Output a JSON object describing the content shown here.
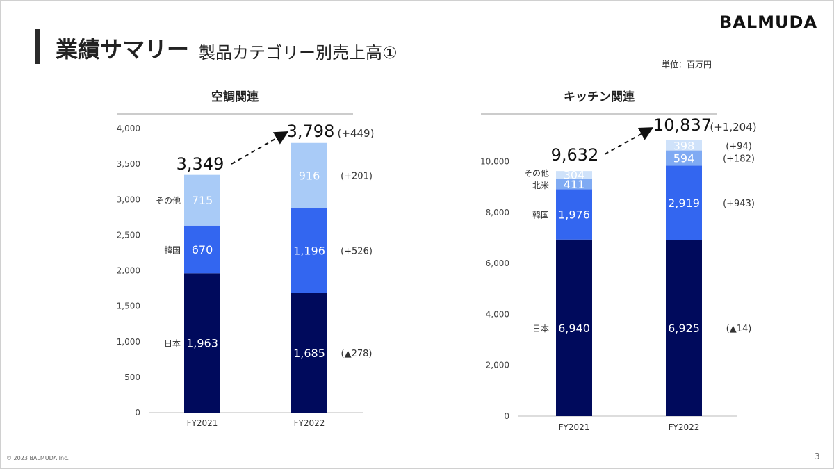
{
  "header": {
    "title": "業績サマリー",
    "subtitle": "製品カテゴリー別売上高①",
    "brand": "BALMUDA",
    "unit": "単位：百万円"
  },
  "footer": {
    "copyright": "© 2023 BALMUDA Inc.",
    "page": "3"
  },
  "colors": {
    "japan": "#000a5c",
    "korea": "#3366f0",
    "na": "#7faaf3",
    "other": "#a9cbf7",
    "other_light": "#cfe2fa"
  },
  "chart_data": [
    {
      "type": "bar",
      "stacked": true,
      "title": "空調関連",
      "categories": [
        "FY2021",
        "FY2022"
      ],
      "ylim": [
        0,
        4000
      ],
      "yticks": [
        "0",
        "500",
        "1,000",
        "1,500",
        "2,000",
        "2,500",
        "3,000",
        "3,500",
        "4,000"
      ],
      "ytick_values": [
        0,
        500,
        1000,
        1500,
        2000,
        2500,
        3000,
        3500,
        4000
      ],
      "series": [
        {
          "name": "日本",
          "values": [
            1963,
            1685
          ],
          "labels": [
            "1,963",
            "1,685"
          ],
          "delta": "(▲278)"
        },
        {
          "name": "韓国",
          "values": [
            670,
            1196
          ],
          "labels": [
            "670",
            "1,196"
          ],
          "delta": "(+526)"
        },
        {
          "name": "その他",
          "values": [
            715,
            916
          ],
          "labels": [
            "715",
            "916"
          ],
          "delta": "(+201)"
        }
      ],
      "totals": [
        "3,349",
        "3,798"
      ],
      "total_values": [
        3349,
        3798
      ],
      "total_delta": "(+449)"
    },
    {
      "type": "bar",
      "stacked": true,
      "title": "キッチン関連",
      "categories": [
        "FY2021",
        "FY2022"
      ],
      "ylim": [
        0,
        11000
      ],
      "yticks": [
        "0",
        "2,000",
        "4,000",
        "6,000",
        "8,000",
        "10,000"
      ],
      "ytick_values": [
        0,
        2000,
        4000,
        6000,
        8000,
        10000
      ],
      "series": [
        {
          "name": "日本",
          "values": [
            6940,
            6925
          ],
          "labels": [
            "6,940",
            "6,925"
          ],
          "delta": "(▲14)"
        },
        {
          "name": "韓国",
          "values": [
            1976,
            2919
          ],
          "labels": [
            "1,976",
            "2,919"
          ],
          "delta": "(+943)"
        },
        {
          "name": "北米",
          "values": [
            411,
            594
          ],
          "labels": [
            "411",
            "594"
          ],
          "delta": "(+182)"
        },
        {
          "name": "その他",
          "values": [
            304,
            398
          ],
          "labels": [
            "304",
            "398"
          ],
          "delta": "(+94)"
        }
      ],
      "totals": [
        "9,632",
        "10,837"
      ],
      "total_values": [
        9632,
        10837
      ],
      "total_delta": "(+1,204)"
    }
  ]
}
